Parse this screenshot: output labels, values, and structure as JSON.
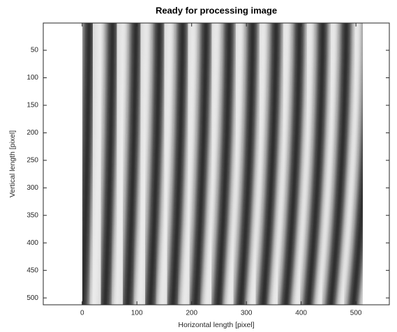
{
  "chart_data": {
    "type": "image",
    "title": "Ready for processing image",
    "x_label": "Horizontal length [pixel]",
    "y_label": "Vertical length [pixel]",
    "xlim": [
      -71,
      561
    ],
    "ylim": [
      0.5,
      512.5
    ],
    "y_reversed": true,
    "xticks": [
      0,
      100,
      200,
      300,
      400,
      500
    ],
    "yticks": [
      50,
      100,
      150,
      200,
      250,
      300,
      350,
      400,
      450,
      500
    ],
    "grid": false
  }
}
